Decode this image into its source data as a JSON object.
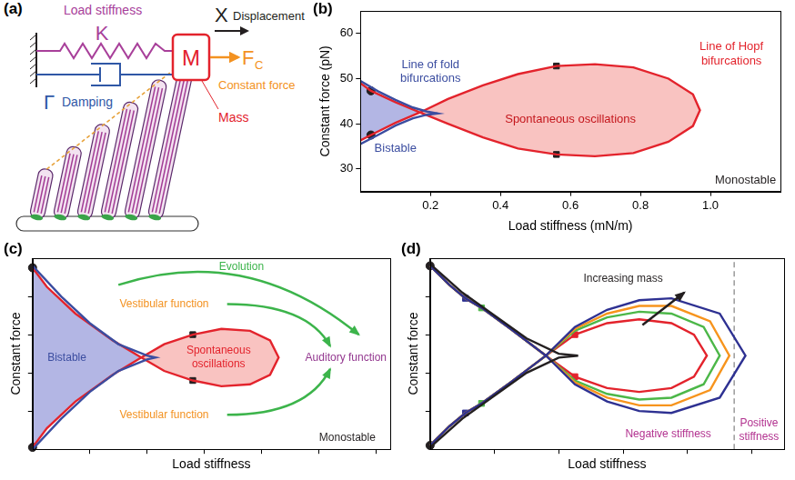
{
  "diagram": {
    "panel_label": "(a)",
    "load_stiffness": {
      "label": "Load stiffness",
      "symbol": "K"
    },
    "damping": {
      "label": "Damping",
      "symbol": "Γ"
    },
    "displacement": {
      "label": "Displacement",
      "symbol": "X"
    },
    "constant_force": {
      "label": "Constant force",
      "symbol": "F",
      "subscript": "C"
    },
    "mass": {
      "label": "Mass",
      "symbol": "M"
    }
  },
  "chart_data": [
    {
      "panel_label": "(b)",
      "type": "line",
      "x_label": "Load stiffness (mN/m)",
      "y_label": "Constant force (pN)",
      "xlim": [
        0,
        1.2
      ],
      "ylim": [
        25,
        65
      ],
      "xticks": [
        0.2,
        0.4,
        0.6,
        0.8,
        {
          "value": 1,
          "label": "1.0"
        }
      ],
      "yticks": [
        30,
        40,
        50,
        60
      ],
      "grid": false,
      "series": [
        {
          "type": "area",
          "color": "#b3b6e4",
          "x": [
            0,
            0.03,
            0.1,
            0.17,
            0.1,
            0.03,
            0
          ],
          "values": [
            49,
            47.3,
            44.8,
            42.5,
            40.2,
            37.5,
            36.3
          ]
        },
        {
          "type": "area",
          "color": "#f9c3c1",
          "x": [
            0.17,
            0.25,
            0.35,
            0.45,
            0.56,
            0.67,
            0.78,
            0.88,
            0.95,
            0.97,
            0.95,
            0.88,
            0.78,
            0.67,
            0.56,
            0.45,
            0.35,
            0.25,
            0.17
          ],
          "values": [
            42.5,
            40,
            37,
            34.5,
            33.2,
            32.8,
            33.5,
            36,
            39.5,
            43,
            46.5,
            50,
            52.5,
            53.2,
            52.8,
            51,
            48.5,
            45.5,
            42.5
          ]
        },
        {
          "type": "line",
          "color": "#3b4da0",
          "x": [
            0,
            0.05,
            0.1,
            0.15,
            0.19,
            0.22,
            0.19,
            0.15,
            0.1,
            0.05,
            0
          ],
          "values": [
            49.5,
            47.2,
            45.3,
            43.6,
            42.7,
            42.3,
            42,
            41.2,
            39.6,
            37.5,
            35.5
          ]
        },
        {
          "type": "line",
          "color": "#e3232c",
          "x": [
            0,
            0.03,
            0.1,
            0.17,
            0.25,
            0.35,
            0.45,
            0.56,
            0.67,
            0.78,
            0.88,
            0.95,
            0.97,
            0.95,
            0.88,
            0.78,
            0.67,
            0.56,
            0.45,
            0.35,
            0.25,
            0.17,
            0.1,
            0.03,
            0
          ],
          "values": [
            49,
            47.3,
            44.8,
            42.5,
            40,
            37,
            34.5,
            33.2,
            32.8,
            33.5,
            36,
            39.5,
            43,
            46.5,
            50,
            52.5,
            53.2,
            52.8,
            51,
            48.5,
            45.5,
            42.5,
            40.2,
            37.5,
            36.3
          ]
        },
        {
          "type": "scatter",
          "marker": "circle",
          "color": "#231f20",
          "x": [
            0.03,
            0.03
          ],
          "values": [
            47.3,
            37.5
          ]
        },
        {
          "type": "scatter",
          "marker": "square",
          "color": "#231f20",
          "x": [
            0.56,
            0.56
          ],
          "values": [
            52.8,
            33.2
          ]
        }
      ],
      "annotations": [
        {
          "text": "Line of fold bifurcations",
          "x": 0.2,
          "y": 51.5,
          "color": "#3b4da0"
        },
        {
          "text": "Line of Hopf bifurcations",
          "x": 1.06,
          "y": 55.5,
          "color": "#e3232c"
        },
        {
          "text": "Spontaneous oscillations",
          "x": 0.6,
          "y": 41,
          "color": "#c4161c"
        },
        {
          "text": "Bistable",
          "x": 0.1,
          "y": 34.5,
          "color": "#3b4da0"
        },
        {
          "text": "Monostable",
          "x": 1.1,
          "y": 27.5,
          "color": "#231f20"
        }
      ]
    },
    {
      "panel_label": "(c)",
      "type": "line",
      "x_label": "Load stiffness",
      "y_label": "Constant force",
      "xlim": [
        0,
        12.5
      ],
      "ylim": [
        0,
        10
      ],
      "xticks": [
        2,
        4,
        6,
        8,
        10,
        12
      ],
      "yticks": [
        2,
        4,
        6,
        8
      ],
      "grid": false,
      "tick_labels": false,
      "series": [
        {
          "type": "area",
          "color": "#b3b6e4",
          "x": [
            0,
            0.5,
            1.5,
            2.8,
            3.8,
            2.8,
            1.5,
            0.5,
            0
          ],
          "values": [
            9.5,
            8.5,
            7.1,
            5.7,
            4.8,
            3.9,
            2.5,
            1.1,
            0.1
          ]
        },
        {
          "type": "area",
          "color": "#f9c3c1",
          "x": [
            3.8,
            4.6,
            5.6,
            6.6,
            7.6,
            8.3,
            8.6,
            8.3,
            7.6,
            6.6,
            5.6,
            4.6,
            3.8
          ],
          "values": [
            4.8,
            4.1,
            3.6,
            3.3,
            3.4,
            3.9,
            4.8,
            5.7,
            6.2,
            6.3,
            6,
            5.5,
            4.8
          ]
        },
        {
          "type": "line",
          "color": "#3b4da0",
          "x": [
            0,
            1,
            2,
            3,
            4,
            4.3,
            4,
            3,
            2,
            1,
            0
          ],
          "values": [
            9.6,
            8,
            6.6,
            5.5,
            4.9,
            4.8,
            4.7,
            4.1,
            3,
            1.6,
            0
          ]
        },
        {
          "type": "line",
          "color": "#e3232c",
          "x": [
            0,
            0.5,
            1.5,
            2.8,
            3.8,
            4.6,
            5.6,
            6.6,
            7.6,
            8.3,
            8.6,
            8.3,
            7.6,
            6.6,
            5.6,
            4.6,
            3.8,
            2.8,
            1.5,
            0.5,
            0
          ],
          "values": [
            9.5,
            8.5,
            7.1,
            5.7,
            4.8,
            4.1,
            3.6,
            3.3,
            3.4,
            3.9,
            4.8,
            5.7,
            6.2,
            6.3,
            6,
            5.5,
            4.8,
            3.9,
            2.5,
            1.1,
            0.1
          ]
        },
        {
          "type": "scatter",
          "marker": "circle",
          "color": "#231f20",
          "x": [
            0,
            0
          ],
          "values": [
            9.5,
            0.1
          ]
        },
        {
          "type": "scatter",
          "marker": "square",
          "color": "#231f20",
          "x": [
            5.6,
            5.6
          ],
          "values": [
            6,
            3.6
          ]
        }
      ],
      "annotations": [
        {
          "text": "Bistable",
          "x": 1.2,
          "y": 4.8,
          "color": "#3b4da0"
        },
        {
          "text": "Spontaneous oscillations",
          "x": 6.5,
          "y": 4.8,
          "color": "#e3232c"
        },
        {
          "text": "Vestibular function",
          "x": 4.6,
          "y": 7.6,
          "color": "#f39221"
        },
        {
          "text": "Vestibular function",
          "x": 4.6,
          "y": 1.8,
          "color": "#f39221"
        },
        {
          "text": "Evolution",
          "x": 7.3,
          "y": 9.55,
          "color": "#3cb44b"
        },
        {
          "text": "Auditory function",
          "x": 11,
          "y": 4.8,
          "color": "#93378f"
        },
        {
          "text": "Monostable",
          "x": 11,
          "y": 0.6,
          "color": "#231f20"
        }
      ]
    },
    {
      "panel_label": "(d)",
      "type": "line",
      "x_label": "Load stiffness",
      "y_label": "Constant force",
      "xlim": [
        0,
        11
      ],
      "ylim": [
        0,
        10
      ],
      "xticks": [
        2,
        4,
        6,
        8,
        10
      ],
      "yticks": [
        2,
        4,
        6,
        8
      ],
      "grid": false,
      "tick_labels": false,
      "series": [
        {
          "type": "line",
          "color": "#231f20",
          "x": [
            0,
            1,
            2,
            3,
            4,
            4.6,
            4,
            3,
            2,
            1,
            0
          ],
          "values": [
            9.7,
            8.2,
            7,
            5.8,
            5,
            4.9,
            4.8,
            4,
            2.8,
            1.6,
            0.1
          ]
        },
        {
          "type": "line",
          "color": "#2e3192",
          "x": [
            0,
            0.6,
            1.1,
            1.6,
            2.5,
            3.6,
            4.5,
            5.5,
            6.5,
            7.5,
            9,
            9.8,
            9,
            7.5,
            6.5,
            5.5,
            4.5,
            3.6,
            2.5,
            1.6,
            1.1,
            0.6,
            0
          ],
          "values": [
            9.6,
            8.6,
            7.9,
            7.4,
            6.3,
            4.9,
            3.4,
            2.5,
            2,
            1.9,
            2.7,
            4.9,
            7.1,
            7.9,
            7.8,
            7.3,
            6.4,
            4.9,
            3.5,
            2.4,
            1.9,
            1.2,
            0.2
          ]
        },
        {
          "type": "line",
          "color": "#f7941d",
          "x": [
            0,
            0.6,
            1.1,
            1.6,
            2.5,
            3.6,
            4.5,
            5.5,
            6.5,
            7.5,
            8.7,
            9.3,
            8.7,
            7.5,
            6.5,
            5.5,
            4.5,
            3.6,
            2.5,
            1.6,
            1.1,
            0.6,
            0
          ],
          "values": [
            9.6,
            8.6,
            7.9,
            7.4,
            6.3,
            4.9,
            3.5,
            2.7,
            2.3,
            2.3,
            3.1,
            4.9,
            6.7,
            7.5,
            7.5,
            7.1,
            6.3,
            4.9,
            3.5,
            2.4,
            1.9,
            1.2,
            0.2
          ]
        },
        {
          "type": "line",
          "color": "#4cb748",
          "x": [
            0,
            0.6,
            1.1,
            1.6,
            2.5,
            3.6,
            4.5,
            5.5,
            6.5,
            7.5,
            8.5,
            9,
            8.5,
            7.5,
            6.5,
            5.5,
            4.5,
            3.6,
            2.5,
            1.6,
            1.1,
            0.6,
            0
          ],
          "values": [
            9.6,
            8.6,
            7.9,
            7.4,
            6.3,
            4.9,
            3.6,
            2.9,
            2.6,
            2.7,
            3.4,
            4.9,
            6.4,
            7.1,
            7.2,
            6.9,
            6.2,
            4.9,
            3.5,
            2.4,
            1.9,
            1.2,
            0.2
          ]
        },
        {
          "type": "line",
          "color": "#e3232c",
          "x": [
            0,
            0.6,
            1.1,
            1.6,
            2.5,
            3.6,
            4.5,
            5.5,
            6.5,
            7.5,
            8.2,
            8.6,
            8.2,
            7.5,
            6.5,
            5.5,
            4.5,
            3.6,
            2.5,
            1.6,
            1.1,
            0.6,
            0
          ],
          "values": [
            9.6,
            8.6,
            7.9,
            7.4,
            6.3,
            4.9,
            3.8,
            3.2,
            3,
            3.2,
            3.8,
            4.9,
            6,
            6.6,
            6.8,
            6.6,
            6,
            4.9,
            3.5,
            2.4,
            1.9,
            1.2,
            0.2
          ]
        },
        {
          "type": "line",
          "color": "#9a9a9a",
          "line_style": "dashed",
          "x": [
            9.45,
            9.45
          ],
          "values": [
            0,
            10
          ]
        },
        {
          "type": "scatter",
          "marker": "circle",
          "color": "#231f20",
          "x": [
            0,
            0
          ],
          "values": [
            9.6,
            0.2
          ]
        },
        {
          "type": "scatter",
          "marker": "square",
          "color": "#2e3192",
          "x": [
            1.1,
            1.1
          ],
          "values": [
            7.9,
            1.9
          ]
        },
        {
          "type": "scatter",
          "marker": "square",
          "color": "#4cb748",
          "x": [
            1.6,
            1.6
          ],
          "values": [
            7.4,
            2.4
          ]
        },
        {
          "type": "scatter",
          "marker": "square",
          "color": "#e3232c",
          "x": [
            4.5,
            4.5
          ],
          "values": [
            6,
            3.8
          ]
        }
      ],
      "annotations": [
        {
          "text": "Increasing mass",
          "x": 6,
          "y": 8.9,
          "color": "#231f20"
        },
        {
          "text": "Negative stiffness",
          "x": 7.4,
          "y": 0.8,
          "color": "#b2318f"
        },
        {
          "text": "Positive stiffness",
          "x": 10.22,
          "y": 1,
          "color": "#b2318f"
        }
      ]
    }
  ]
}
